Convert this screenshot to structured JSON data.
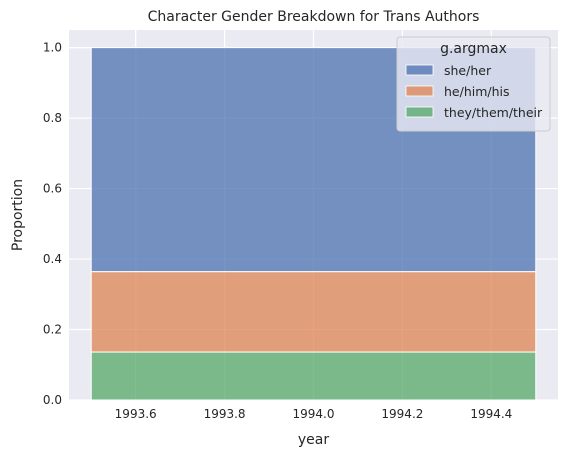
{
  "chart_data": {
    "type": "bar",
    "stacked": true,
    "normalized": true,
    "title": "Character Gender Breakdown for Trans Authors",
    "xlabel": "year",
    "ylabel": "Proportion",
    "xlim": [
      1993.45,
      1994.55
    ],
    "ylim": [
      0,
      1.05
    ],
    "x_span": [
      1993.5,
      1994.5
    ],
    "xticks": [
      "1993.6",
      "1993.8",
      "1994.0",
      "1994.2",
      "1994.4"
    ],
    "yticks": [
      "0.0",
      "0.2",
      "0.4",
      "0.6",
      "0.8",
      "1.0"
    ],
    "grid": true,
    "legend_title": "g.argmax",
    "legend_position": "upper right",
    "series": [
      {
        "name": "she/her",
        "color": "#4c72b0",
        "y0": 0.364,
        "y1": 1.0
      },
      {
        "name": "he/him/his",
        "color": "#dd8452",
        "y0": 0.136,
        "y1": 0.364
      },
      {
        "name": "they/them/their",
        "color": "#55a868",
        "y0": 0.0,
        "y1": 0.136
      }
    ]
  }
}
